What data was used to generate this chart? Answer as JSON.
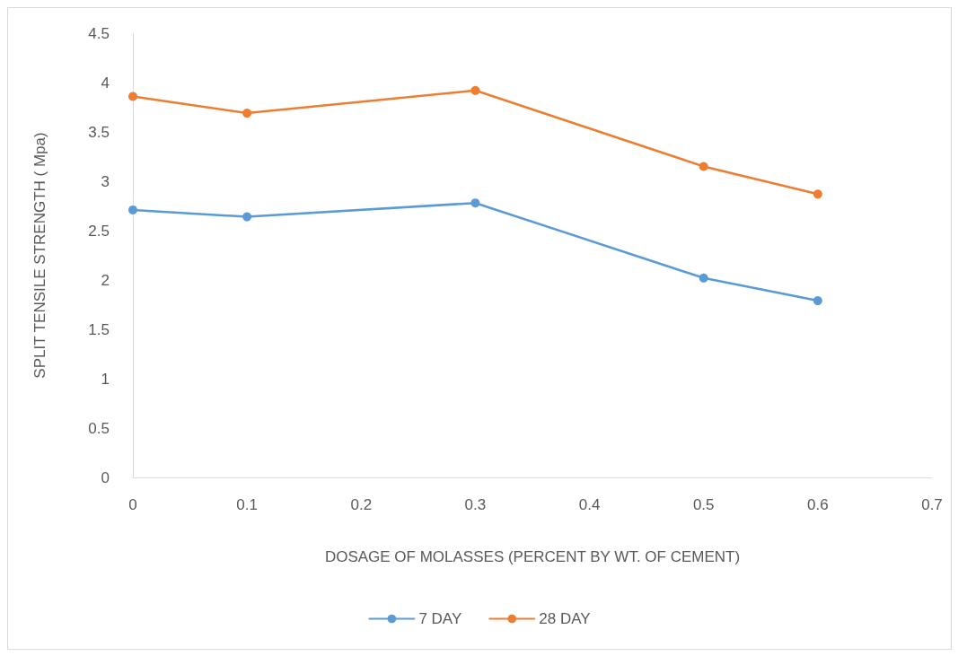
{
  "chart_data": {
    "type": "line",
    "xlabel": "DOSAGE OF MOLASSES (PERCENT BY WT. OF CEMENT)",
    "ylabel": "SPLIT TENSILE STRENGTH ( Mpa)",
    "x": [
      0,
      0.1,
      0.3,
      0.5,
      0.6
    ],
    "series": [
      {
        "name": "7 DAY",
        "color": "#5b9bd5",
        "values": [
          2.71,
          2.64,
          2.78,
          2.02,
          1.79
        ]
      },
      {
        "name": "28 DAY",
        "color": "#ed7d31",
        "values": [
          3.86,
          3.69,
          3.92,
          3.15,
          2.87
        ]
      }
    ],
    "xlim": [
      0,
      0.7
    ],
    "xticks": [
      0,
      0.1,
      0.2,
      0.3,
      0.4,
      0.5,
      0.6,
      0.7
    ],
    "ylim": [
      0,
      4.5
    ],
    "yticks": [
      0,
      0.5,
      1,
      1.5,
      2,
      2.5,
      3,
      3.5,
      4,
      4.5
    ],
    "grid": false,
    "legend": "bottom",
    "marker": "circle",
    "line_style": "solid"
  }
}
